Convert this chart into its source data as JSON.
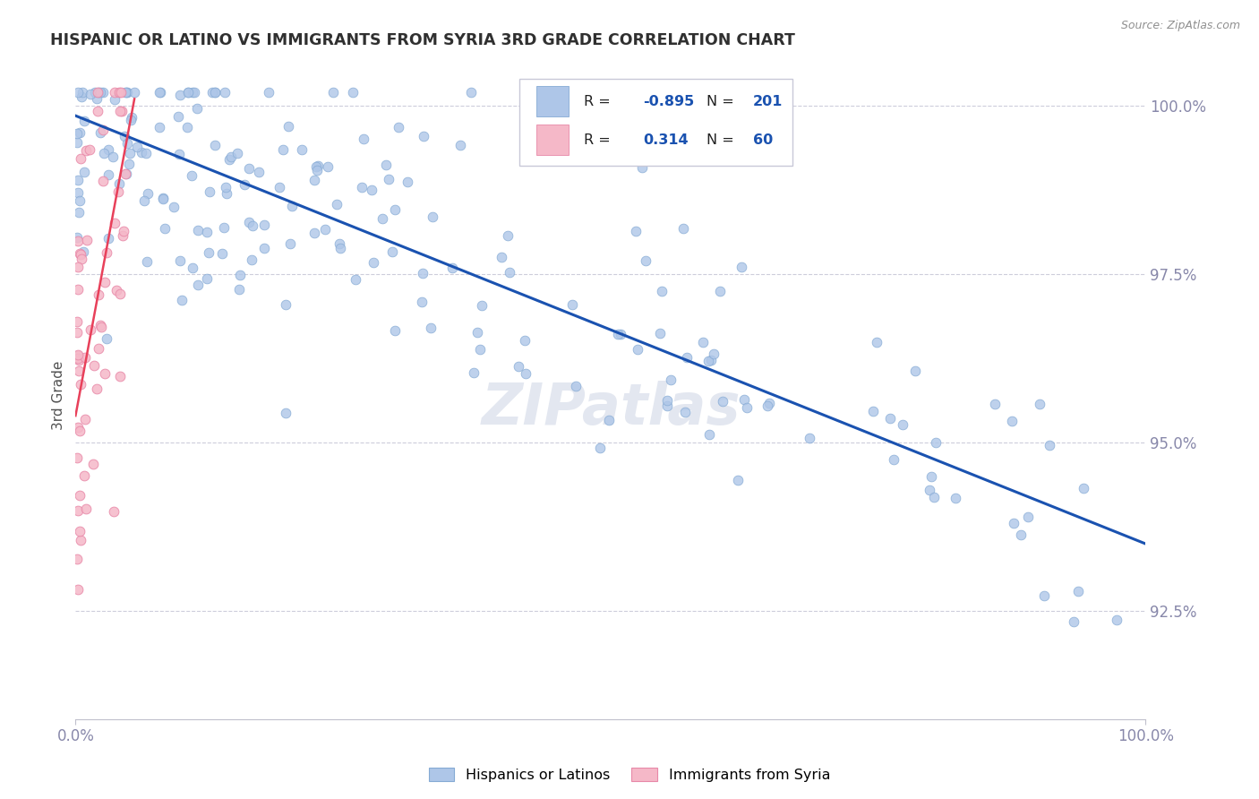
{
  "title": "HISPANIC OR LATINO VS IMMIGRANTS FROM SYRIA 3RD GRADE CORRELATION CHART",
  "source_text": "Source: ZipAtlas.com",
  "ylabel": "3rd Grade",
  "xlim": [
    0.0,
    1.0
  ],
  "ylim": [
    0.909,
    1.005
  ],
  "yticks": [
    0.925,
    0.95,
    0.975,
    1.0
  ],
  "ytick_labels": [
    "92.5%",
    "95.0%",
    "97.5%",
    "100.0%"
  ],
  "xticks": [
    0.0,
    1.0
  ],
  "xtick_labels": [
    "0.0%",
    "100.0%"
  ],
  "blue_R": -0.895,
  "blue_N": 201,
  "pink_R": 0.314,
  "pink_N": 60,
  "blue_color": "#aec6e8",
  "pink_color": "#f5b8c8",
  "blue_edge_color": "#85aad4",
  "pink_edge_color": "#e888a8",
  "trendline_blue_color": "#1a52b0",
  "trendline_pink_color": "#e8405a",
  "legend_blue_label": "Hispanics or Latinos",
  "legend_pink_label": "Immigrants from Syria",
  "background_color": "#ffffff",
  "grid_color": "#c8c8d8",
  "title_color": "#303030",
  "axis_label_color": "#505050",
  "tick_color": "#8888aa",
  "source_color": "#909090",
  "watermark": "ZIPatlas",
  "watermark_color": "#ccd4e4",
  "legend_r1_color": "#1a52b0",
  "legend_r2_color": "#1a52b0",
  "trendline_blue_x0": 0.0,
  "trendline_blue_y0": 0.9985,
  "trendline_blue_x1": 1.0,
  "trendline_blue_y1": 0.935,
  "trendline_pink_x0": 0.0,
  "trendline_pink_y0": 0.954,
  "trendline_pink_x1": 0.055,
  "trendline_pink_y1": 1.001
}
